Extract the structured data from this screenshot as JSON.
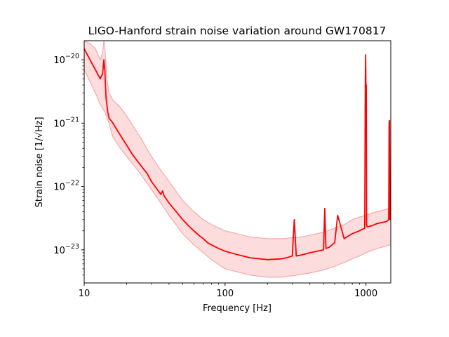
{
  "chart_data": {
    "type": "line",
    "title": "LIGO-Hanford strain noise variation around GW170817",
    "xlabel": "Frequency [Hz]",
    "ylabel": "Strain noise [1/√Hz]",
    "xscale": "log",
    "yscale": "log",
    "xlim": [
      10,
      1500
    ],
    "ylim": [
      3e-24,
      2e-20
    ],
    "x_ticks": [
      {
        "value": 10,
        "label": "10"
      },
      {
        "value": 100,
        "label": "100"
      },
      {
        "value": 1000,
        "label": "1000"
      }
    ],
    "y_ticks": [
      {
        "value": 1e-23,
        "base": "10",
        "exp": "−23"
      },
      {
        "value": 1e-22,
        "base": "10",
        "exp": "−22"
      },
      {
        "value": 1e-21,
        "base": "10",
        "exp": "−21"
      },
      {
        "value": 1e-20,
        "base": "10",
        "exp": "−20"
      }
    ],
    "grid": false,
    "colors": {
      "median": "#ff0000",
      "band_fill": "#fcdcdc",
      "band_edge": "#f5aaaa"
    },
    "series": [
      {
        "role": "median",
        "x": [
          10,
          11,
          12,
          13,
          13.5,
          13.8,
          14,
          14.3,
          14.7,
          15,
          15.5,
          16,
          17,
          18,
          20,
          22,
          25,
          28,
          30,
          33,
          35,
          36,
          37,
          38,
          40,
          45,
          50,
          55,
          60,
          65,
          70,
          75,
          80,
          90,
          100,
          120,
          150,
          200,
          250,
          280,
          300,
          310,
          320,
          350,
          400,
          450,
          500,
          510,
          520,
          550,
          600,
          630,
          700,
          800,
          900,
          980,
          990,
          995,
          1000,
          1005,
          1010,
          1020,
          1100,
          1200,
          1300,
          1400,
          1450,
          1460,
          1470,
          1480,
          1500
        ],
        "y": [
          1.5e-20,
          1e-20,
          7e-21,
          5e-21,
          6e-21,
          1e-20,
          7e-21,
          2.5e-21,
          1.5e-21,
          1.2e-21,
          1.1e-21,
          1e-21,
          8e-22,
          6.5e-22,
          4.5e-22,
          3.2e-22,
          2.2e-22,
          1.6e-22,
          1.2e-22,
          9e-23,
          7.5e-23,
          8.5e-23,
          7e-23,
          6.5e-23,
          5.5e-23,
          4e-23,
          3e-23,
          2.4e-23,
          2e-23,
          1.7e-23,
          1.5e-23,
          1.3e-23,
          1.2e-23,
          1.05e-23,
          9.5e-24,
          8.5e-24,
          7.5e-24,
          7e-24,
          7.2e-24,
          7.6e-24,
          8e-24,
          3e-23,
          8e-24,
          8.3e-24,
          9e-24,
          9.5e-24,
          1e-23,
          4.5e-23,
          1.05e-23,
          1.1e-23,
          1.3e-23,
          3.5e-23,
          1.5e-23,
          1.8e-23,
          2e-23,
          2.2e-23,
          5e-21,
          1.2e-20,
          3e-21,
          4e-21,
          2.5e-23,
          2.3e-23,
          2.4e-23,
          2.6e-23,
          2.7e-23,
          2.8e-23,
          3e-23,
          1e-21,
          1.1e-21,
          3e-23,
          3e-23
        ]
      },
      {
        "role": "upper",
        "x": [
          10,
          11,
          12,
          13,
          13.5,
          13.8,
          14,
          14.5,
          15,
          16,
          18,
          20,
          25,
          30,
          35,
          40,
          50,
          60,
          70,
          80,
          100,
          150,
          200,
          250,
          300,
          350,
          400,
          500,
          600,
          700,
          800,
          900,
          1000,
          1100,
          1200,
          1300,
          1400,
          1500
        ],
        "y": [
          2e-20,
          1.8e-20,
          1.5e-20,
          1e-20,
          1.3e-20,
          2e-20,
          1.6e-20,
          5e-21,
          3e-21,
          2.3e-21,
          1.8e-21,
          1.3e-21,
          6e-22,
          3e-22,
          1.8e-22,
          1.2e-22,
          6e-23,
          4e-23,
          3e-23,
          2.5e-23,
          2e-23,
          1.6e-23,
          1.5e-23,
          1.5e-23,
          1.55e-23,
          1.6e-23,
          1.7e-23,
          1.9e-23,
          2.2e-23,
          2.5e-23,
          3e-23,
          3.3e-23,
          3.5e-23,
          3.8e-23,
          4e-23,
          4.2e-23,
          4.4e-23,
          4.6e-23
        ]
      },
      {
        "role": "lower",
        "x": [
          10,
          11,
          12,
          13,
          14,
          15,
          16,
          18,
          20,
          25,
          30,
          35,
          40,
          50,
          60,
          70,
          80,
          100,
          150,
          200,
          250,
          300,
          400,
          500,
          600,
          700,
          800,
          900,
          1000,
          1100,
          1200,
          1300,
          1400,
          1500
        ],
        "y": [
          7e-21,
          4.5e-21,
          3e-21,
          2e-21,
          1.5e-21,
          1e-21,
          6e-22,
          4e-22,
          3e-22,
          1.6e-22,
          9e-23,
          5.5e-23,
          3.5e-23,
          1.8e-23,
          1.2e-23,
          9e-24,
          7e-24,
          5e-24,
          4e-24,
          3.7e-24,
          3.7e-24,
          3.9e-24,
          4.3e-24,
          4.8e-24,
          5.5e-24,
          6.3e-24,
          7.2e-24,
          8e-24,
          9e-24,
          9.8e-24,
          1.05e-23,
          1.1e-23,
          1.15e-23,
          1.2e-23
        ]
      }
    ]
  }
}
